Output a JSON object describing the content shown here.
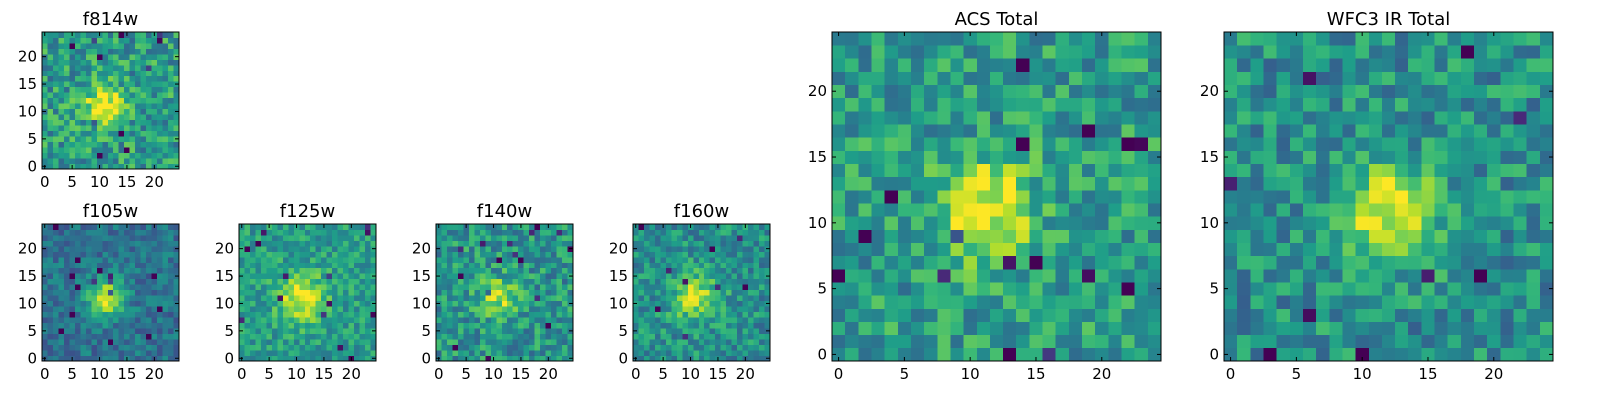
{
  "colormap": "viridis",
  "colors": {
    "background": "#ffffff",
    "frame": "#000000",
    "cmap_low": "#440154",
    "cmap_mid": "#21918c",
    "cmap_high": "#fde725"
  },
  "chart_data": [
    {
      "type": "heatmap",
      "title": "f814w",
      "grid": [
        25,
        25
      ],
      "xlim": [
        -0.5,
        24.5
      ],
      "ylim": [
        -0.5,
        24.5
      ],
      "xticks": [
        0,
        5,
        10,
        15,
        20
      ],
      "yticks": [
        0,
        5,
        10,
        15,
        20
      ],
      "hotspot": {
        "x": 11,
        "y": 11,
        "radius": 2.5,
        "amplitude": 0.5
      },
      "noise": 0.22,
      "base": 0.55,
      "seed": 11
    },
    {
      "type": "heatmap",
      "title": "f105w",
      "grid": [
        25,
        25
      ],
      "xlim": [
        -0.5,
        24.5
      ],
      "ylim": [
        -0.5,
        24.5
      ],
      "xticks": [
        0,
        5,
        10,
        15,
        20
      ],
      "yticks": [
        0,
        5,
        10,
        15,
        20
      ],
      "hotspot": {
        "x": 11,
        "y": 11,
        "radius": 2.5,
        "amplitude": 0.55
      },
      "noise": 0.14,
      "base": 0.38,
      "seed": 23
    },
    {
      "type": "heatmap",
      "title": "f125w",
      "grid": [
        25,
        25
      ],
      "xlim": [
        -0.5,
        24.5
      ],
      "ylim": [
        -0.5,
        24.5
      ],
      "xticks": [
        0,
        5,
        10,
        15,
        20
      ],
      "yticks": [
        0,
        5,
        10,
        15,
        20
      ],
      "hotspot": {
        "x": 11,
        "y": 11,
        "radius": 3,
        "amplitude": 0.45
      },
      "noise": 0.16,
      "base": 0.55,
      "seed": 37
    },
    {
      "type": "heatmap",
      "title": "f140w",
      "grid": [
        25,
        25
      ],
      "xlim": [
        -0.5,
        24.5
      ],
      "ylim": [
        -0.5,
        24.5
      ],
      "xticks": [
        0,
        5,
        10,
        15,
        20
      ],
      "yticks": [
        0,
        5,
        10,
        15,
        20
      ],
      "hotspot": {
        "x": 11,
        "y": 11,
        "radius": 2.5,
        "amplitude": 0.35
      },
      "noise": 0.2,
      "base": 0.52,
      "seed": 41
    },
    {
      "type": "heatmap",
      "title": "f160w",
      "grid": [
        25,
        25
      ],
      "xlim": [
        -0.5,
        24.5
      ],
      "ylim": [
        -0.5,
        24.5
      ],
      "xticks": [
        0,
        5,
        10,
        15,
        20
      ],
      "yticks": [
        0,
        5,
        10,
        15,
        20
      ],
      "hotspot": {
        "x": 11,
        "y": 11,
        "radius": 3,
        "amplitude": 0.4
      },
      "noise": 0.18,
      "base": 0.5,
      "seed": 53
    },
    {
      "type": "heatmap",
      "title": "ACS Total",
      "grid": [
        25,
        25
      ],
      "xlim": [
        -0.5,
        24.5
      ],
      "ylim": [
        -0.5,
        24.5
      ],
      "xticks": [
        0,
        5,
        10,
        15,
        20
      ],
      "yticks": [
        0,
        5,
        10,
        15,
        20
      ],
      "hotspot": {
        "x": 11,
        "y": 11,
        "radius": 2.5,
        "amplitude": 0.5
      },
      "noise": 0.2,
      "base": 0.55,
      "seed": 67
    },
    {
      "type": "heatmap",
      "title": "WFC3 IR Total",
      "grid": [
        25,
        25
      ],
      "xlim": [
        -0.5,
        24.5
      ],
      "ylim": [
        -0.5,
        24.5
      ],
      "xticks": [
        0,
        5,
        10,
        15,
        20
      ],
      "yticks": [
        0,
        5,
        10,
        15,
        20
      ],
      "hotspot": {
        "x": 12,
        "y": 11,
        "radius": 2.5,
        "amplitude": 0.5
      },
      "noise": 0.2,
      "base": 0.5,
      "seed": 79
    }
  ]
}
